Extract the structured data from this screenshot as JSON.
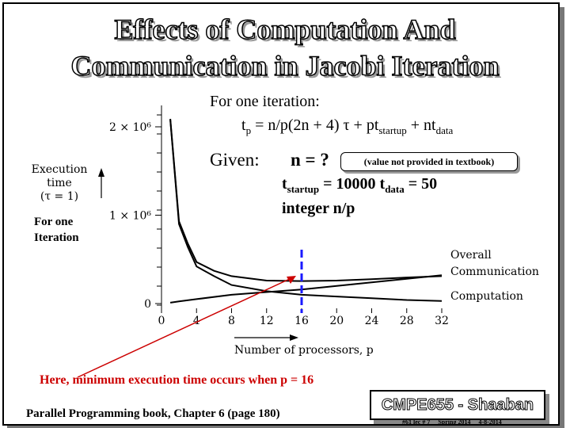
{
  "slide": {
    "title_line1": "Effects of Computation And",
    "title_line2": "Communication in Jacobi Iteration",
    "for_one_iteration": "For one iteration:",
    "formula": {
      "tp": "t",
      "tp_sub": "p",
      "expr": " = n/p(2n + 4) τ + pt",
      "startup_sub": "startup",
      "plus_nt": " + nt",
      "data_sub": "data"
    },
    "given": "Given:",
    "n_q": "n = ?",
    "value_note": "(value not provided in textbook)",
    "tstartup": "t",
    "tstartup_sub": "startup",
    "tstartup_val": " = 10000",
    "tdata": "t",
    "tdata_sub": "data",
    "tdata_val": " = 50",
    "integer_np": "integer n/p",
    "left_label_line1": "For one",
    "left_label_line2": "Iteration",
    "conclusion": "Here, minimum execution time occurs when p = 16",
    "book": "Parallel Programming book, Chapter 6 (page 180)",
    "badge": "CMPE655 - Shaaban",
    "footer": [
      "#61 lec # 7",
      "Spring 2014",
      "4-8-2014"
    ]
  },
  "chart_data": {
    "type": "line",
    "ylabel_lines": [
      "Execution",
      "time",
      "(τ = 1)"
    ],
    "xlabel": "Number of processors, p",
    "x_ticks": [
      0,
      4,
      8,
      12,
      16,
      20,
      24,
      28,
      32
    ],
    "y_ticks": [
      {
        "value": 0,
        "label": "0"
      },
      {
        "value": 1000000,
        "label": "1 × 10⁶"
      },
      {
        "value": 2000000,
        "label": "2 × 10⁶"
      }
    ],
    "xlim": [
      0,
      32
    ],
    "ylim": [
      0,
      2000000
    ],
    "series": [
      {
        "name": "Overall",
        "x": [
          1,
          2,
          3,
          4,
          6,
          8,
          12,
          16,
          20,
          24,
          28,
          32
        ],
        "y": [
          2090000,
          930000,
          680000,
          470000,
          370000,
          310000,
          260000,
          255000,
          260000,
          275000,
          295000,
          310000
        ]
      },
      {
        "name": "Communication",
        "x": [
          1,
          2,
          4,
          8,
          12,
          16,
          20,
          24,
          28,
          32
        ],
        "y": [
          10000,
          25000,
          50000,
          100000,
          130000,
          160000,
          200000,
          240000,
          280000,
          320000
        ]
      },
      {
        "name": "Computation",
        "x": [
          1,
          2,
          3,
          4,
          6,
          8,
          12,
          16,
          20,
          24,
          28,
          32
        ],
        "y": [
          2080000,
          900000,
          640000,
          420000,
          310000,
          210000,
          140000,
          100000,
          80000,
          60000,
          40000,
          30000
        ]
      }
    ],
    "legend_lines": [
      "Overall",
      "Communication",
      "Computation"
    ],
    "marker_x": 16
  }
}
